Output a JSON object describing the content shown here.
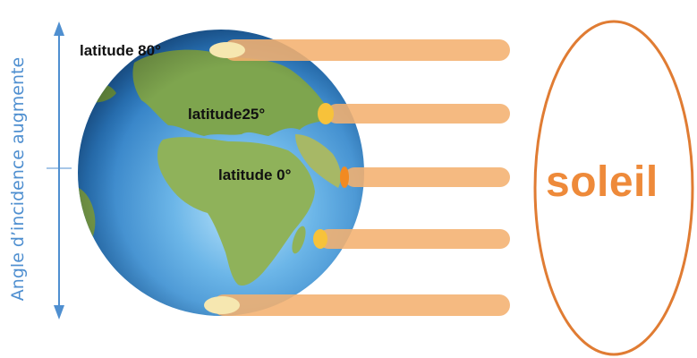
{
  "axis": {
    "label": "Angle d’incidence augmente"
  },
  "latitudes": {
    "lat80": "latitude 80°",
    "lat25": "latitude25°",
    "lat0": "latitude 0°"
  },
  "sun": {
    "label": "soleil"
  },
  "colors": {
    "arrow": "#4f8fd0",
    "ray": "#f4b070",
    "sun_outline": "#e07c33",
    "sun_text": "#ee8a3a",
    "ocean": "#2e7fc4",
    "land": "#7aa24c"
  },
  "icons": {
    "globe": "earth-globe-icon",
    "double_arrow": "vertical-double-arrow-icon"
  }
}
